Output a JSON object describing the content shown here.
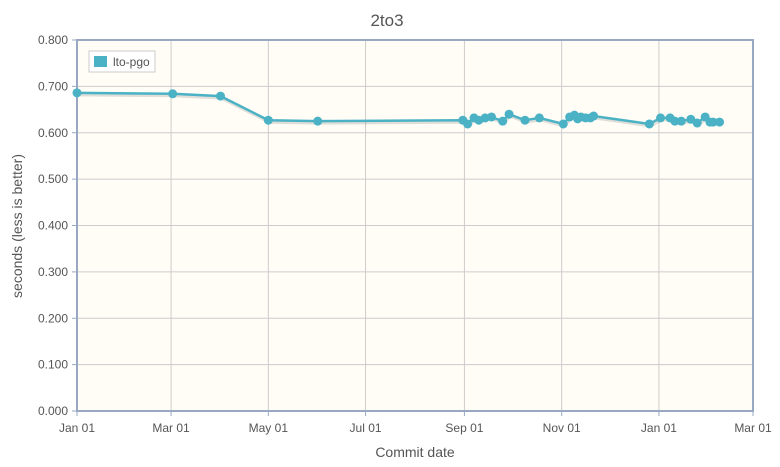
{
  "chart_data": {
    "type": "line",
    "title": "2to3",
    "xlabel": "Commit date",
    "ylabel": "seconds (less is better)",
    "x_units": "days since Jan 01 (first year)",
    "xlim": [
      0,
      424
    ],
    "ylim": [
      0,
      0.8
    ],
    "grid": true,
    "legend_position": "top-left",
    "x_ticks": [
      {
        "value": 0,
        "label": "Jan 01"
      },
      {
        "value": 59,
        "label": "Mar 01"
      },
      {
        "value": 120,
        "label": "May 01"
      },
      {
        "value": 181,
        "label": "Jul 01"
      },
      {
        "value": 243,
        "label": "Sep 01"
      },
      {
        "value": 304,
        "label": "Nov 01"
      },
      {
        "value": 365,
        "label": "Jan 01"
      },
      {
        "value": 424,
        "label": "Mar 01"
      }
    ],
    "y_ticks": [
      "0.000",
      "0.100",
      "0.200",
      "0.300",
      "0.400",
      "0.500",
      "0.600",
      "0.700",
      "0.800"
    ],
    "series": [
      {
        "name": "lto-pgo",
        "color": "#4bb2c5",
        "x": [
          0,
          60,
          90,
          120,
          151,
          242,
          245,
          249,
          252,
          256,
          260,
          267,
          271,
          281,
          290,
          305,
          309,
          312,
          314,
          316,
          319,
          322,
          324,
          359,
          366,
          372,
          375,
          379,
          385,
          389,
          394,
          397,
          399,
          403
        ],
        "y": [
          0.686,
          0.684,
          0.679,
          0.627,
          0.625,
          0.627,
          0.619,
          0.632,
          0.627,
          0.632,
          0.634,
          0.625,
          0.64,
          0.627,
          0.632,
          0.619,
          0.634,
          0.638,
          0.63,
          0.634,
          0.632,
          0.632,
          0.636,
          0.619,
          0.632,
          0.632,
          0.625,
          0.625,
          0.629,
          0.621,
          0.634,
          0.623,
          0.623,
          0.623
        ]
      }
    ]
  },
  "colors": {
    "plot_bg": "#fffdf6",
    "axis": "#99a8c2",
    "grid": "#cccccc"
  }
}
